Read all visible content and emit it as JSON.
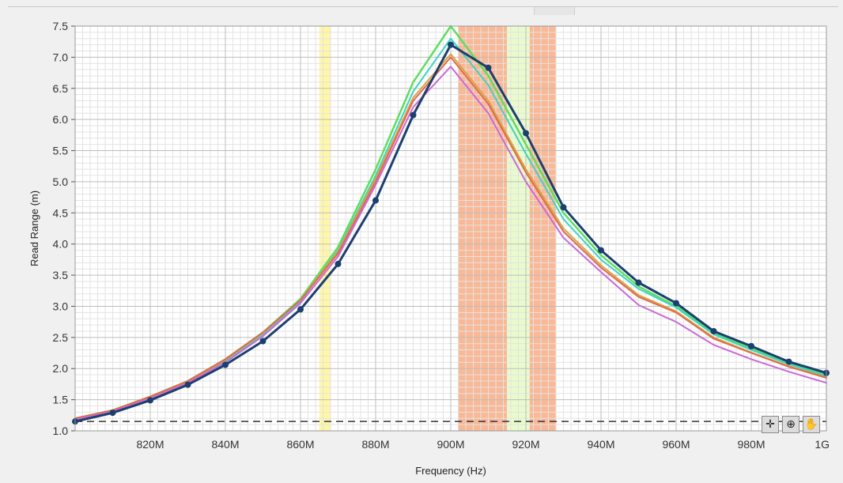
{
  "chart_data": {
    "type": "line",
    "xlabel": "Frequency (Hz)",
    "ylabel": "Read Range (m)",
    "xlim": [
      800,
      1000
    ],
    "ylim": [
      1.0,
      7.5
    ],
    "x_ticks": [
      {
        "value": 820,
        "label": "820M"
      },
      {
        "value": 840,
        "label": "840M"
      },
      {
        "value": 860,
        "label": "860M"
      },
      {
        "value": 880,
        "label": "880M"
      },
      {
        "value": 900,
        "label": "900M"
      },
      {
        "value": 920,
        "label": "920M"
      },
      {
        "value": 940,
        "label": "940M"
      },
      {
        "value": 960,
        "label": "960M"
      },
      {
        "value": 980,
        "label": "980M"
      },
      {
        "value": 1000,
        "label": "1G"
      }
    ],
    "y_ticks": [
      {
        "value": 1.0,
        "label": "1.0"
      },
      {
        "value": 1.5,
        "label": "1.5"
      },
      {
        "value": 2.0,
        "label": "2.0"
      },
      {
        "value": 2.5,
        "label": "2.5"
      },
      {
        "value": 3.0,
        "label": "3.0"
      },
      {
        "value": 3.5,
        "label": "3.5"
      },
      {
        "value": 4.0,
        "label": "4.0"
      },
      {
        "value": 4.5,
        "label": "4.5"
      },
      {
        "value": 5.0,
        "label": "5.0"
      },
      {
        "value": 5.5,
        "label": "5.5"
      },
      {
        "value": 6.0,
        "label": "6.0"
      },
      {
        "value": 6.5,
        "label": "6.5"
      },
      {
        "value": 7.0,
        "label": "7.0"
      },
      {
        "value": 7.5,
        "label": "7.5"
      }
    ],
    "grid": true,
    "reference_line": {
      "y": 1.15,
      "style": "dashed",
      "color": "#333333"
    },
    "bands": [
      {
        "x0": 865,
        "x1": 868,
        "color": "#fff6a8"
      },
      {
        "x0": 902,
        "x1": 915,
        "color": "#f9b896"
      },
      {
        "x0": 915,
        "x1": 921,
        "color": "#e9fbcc"
      },
      {
        "x0": 921,
        "x1": 928,
        "color": "#f9b896"
      }
    ],
    "x": [
      800,
      810,
      820,
      830,
      840,
      850,
      860,
      870,
      880,
      890,
      900,
      910,
      920,
      930,
      940,
      950,
      960,
      970,
      980,
      990,
      1000
    ],
    "series": [
      {
        "color": "#5ede5e",
        "width": 2.5,
        "markers": false,
        "values": [
          1.2,
          1.33,
          1.55,
          1.8,
          2.15,
          2.58,
          3.12,
          3.95,
          5.2,
          6.6,
          7.5,
          6.7,
          5.6,
          4.5,
          3.82,
          3.32,
          3.0,
          2.58,
          2.32,
          2.1,
          1.9
        ]
      },
      {
        "color": "#3bd4c4",
        "width": 2,
        "markers": false,
        "values": [
          1.19,
          1.32,
          1.53,
          1.78,
          2.12,
          2.55,
          3.08,
          3.9,
          5.1,
          6.45,
          7.3,
          6.55,
          5.45,
          4.4,
          3.75,
          3.28,
          2.98,
          2.55,
          2.3,
          2.07,
          1.88
        ]
      },
      {
        "color": "#d8a544",
        "width": 2,
        "markers": false,
        "values": [
          1.19,
          1.32,
          1.54,
          1.79,
          2.14,
          2.57,
          3.1,
          3.88,
          5.05,
          6.35,
          7.05,
          6.3,
          5.2,
          4.25,
          3.66,
          3.18,
          2.92,
          2.5,
          2.26,
          2.04,
          1.86
        ]
      },
      {
        "color": "#e06a4e",
        "width": 2,
        "markers": false,
        "values": [
          1.2,
          1.33,
          1.55,
          1.8,
          2.15,
          2.58,
          3.1,
          3.85,
          5.0,
          6.3,
          7.0,
          6.25,
          5.15,
          4.2,
          3.62,
          3.15,
          2.9,
          2.48,
          2.25,
          2.03,
          1.85
        ]
      },
      {
        "color": "#c969d9",
        "width": 2,
        "markers": false,
        "values": [
          1.18,
          1.31,
          1.52,
          1.77,
          2.1,
          2.52,
          3.05,
          3.8,
          4.95,
          6.2,
          6.85,
          6.1,
          5.0,
          4.1,
          3.55,
          3.02,
          2.75,
          2.38,
          2.15,
          1.95,
          1.77
        ]
      },
      {
        "color": "#1b3f6e",
        "width": 3,
        "markers": true,
        "values": [
          1.15,
          1.29,
          1.49,
          1.74,
          2.06,
          2.44,
          2.95,
          3.68,
          4.7,
          6.07,
          7.2,
          6.83,
          5.78,
          4.59,
          3.9,
          3.38,
          3.05,
          2.6,
          2.36,
          2.11,
          1.93
        ]
      }
    ]
  },
  "toolbar": {
    "cursor_glyph": "✛",
    "zoom_glyph": "⊕",
    "pan_glyph": "✋"
  }
}
